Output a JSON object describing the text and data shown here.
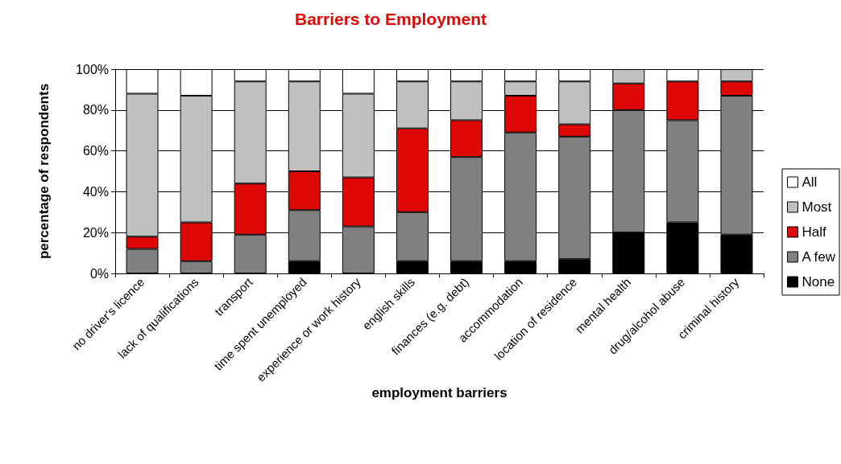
{
  "chart_data": {
    "type": "bar",
    "title": "Barriers to Employment",
    "xlabel": "employment barriers",
    "ylabel": "percentage of respondents",
    "categories": [
      "no driver's licence",
      "lack of qualifications",
      "transport",
      "time spent unemployed",
      "experience or work history",
      "english skills",
      "finances (e.g. debt)",
      "accommodation",
      "location of residence",
      "mental health",
      "drug/alcohol abuse",
      "criminal history"
    ],
    "stacked": true,
    "series": [
      {
        "name": "None",
        "color": "#000000",
        "values": [
          0,
          0,
          0,
          6,
          0,
          6,
          6,
          6,
          7,
          20,
          25,
          19
        ]
      },
      {
        "name": "A few",
        "color": "#808080",
        "values": [
          12,
          6,
          19,
          25,
          23,
          24,
          51,
          63,
          60,
          60,
          50,
          68
        ]
      },
      {
        "name": "Half",
        "color": "#dd0806",
        "values": [
          6,
          19,
          25,
          19,
          24,
          41,
          18,
          18,
          6,
          13,
          19,
          7
        ]
      },
      {
        "name": "Most",
        "color": "#c0c0c0",
        "values": [
          70,
          62,
          50,
          44,
          41,
          23,
          19,
          7,
          21,
          7,
          0,
          6
        ]
      },
      {
        "name": "All",
        "color": "#ffffff",
        "values": [
          12,
          13,
          6,
          6,
          12,
          6,
          6,
          6,
          6,
          0,
          6,
          0
        ]
      }
    ],
    "ylim": [
      0,
      100
    ],
    "yticks": [
      {
        "value": 0,
        "label": "0%"
      },
      {
        "value": 20,
        "label": "20%"
      },
      {
        "value": 40,
        "label": "40%"
      },
      {
        "value": 60,
        "label": "60%"
      },
      {
        "value": 80,
        "label": "80%"
      },
      {
        "value": 100,
        "label": "100%"
      }
    ],
    "grid": "y",
    "legend": "right"
  }
}
